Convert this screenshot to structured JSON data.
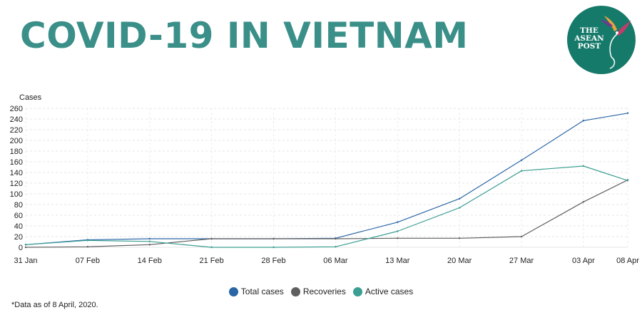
{
  "header": {
    "title": "COVID-19 IN VIETNAM"
  },
  "logo": {
    "line1": "THE",
    "line2": "ASEAN",
    "line3": "POST",
    "bg_color": "#167a6b"
  },
  "footnote": "*Data as of 8 April, 2020.",
  "chart_data": {
    "type": "line",
    "title": "",
    "ylabel": "Cases",
    "xlabel": "",
    "ylim": [
      0,
      260
    ],
    "yticks": [
      0,
      20,
      40,
      60,
      80,
      100,
      120,
      140,
      160,
      180,
      200,
      220,
      240,
      260
    ],
    "x": [
      "2020-01-31",
      "2020-02-07",
      "2020-02-14",
      "2020-02-21",
      "2020-02-28",
      "2020-03-06",
      "2020-03-13",
      "2020-03-20",
      "2020-03-27",
      "2020-04-03",
      "2020-04-08"
    ],
    "xticklabels": [
      "31 Jan",
      "07 Feb",
      "14 Feb",
      "21 Feb",
      "28 Feb",
      "06 Mar",
      "13 Mar",
      "20 Mar",
      "27 Mar",
      "03 Apr",
      "08 Apr"
    ],
    "grid": true,
    "legend": "bottom-center",
    "series": [
      {
        "name": "Total cases",
        "color": "#2a65a6",
        "values": [
          5,
          14,
          16,
          16,
          16,
          17,
          47,
          91,
          163,
          237,
          251
        ]
      },
      {
        "name": "Recoveries",
        "color": "#5f5f5f",
        "values": [
          0,
          1,
          5,
          16,
          16,
          16,
          17,
          17,
          20,
          85,
          126
        ]
      },
      {
        "name": "Active cases",
        "color": "#3a9e93",
        "values": [
          5,
          13,
          11,
          0,
          0,
          1,
          30,
          74,
          143,
          152,
          125
        ]
      }
    ]
  }
}
